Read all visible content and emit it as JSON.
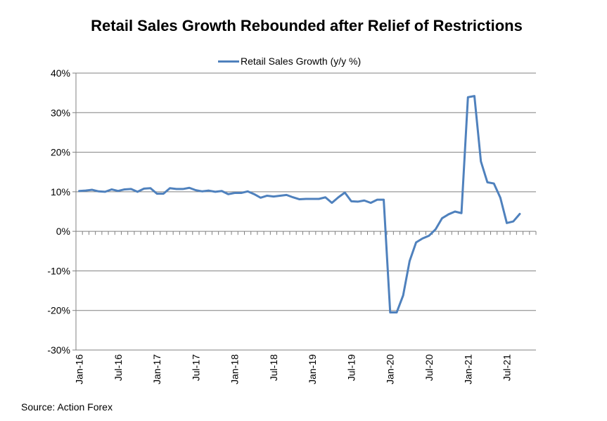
{
  "chart_data": {
    "type": "line",
    "title": "Retail Sales Growth Rebounded after Relief of Restrictions",
    "xlabel": "",
    "ylabel": "",
    "ylim": [
      -30,
      40
    ],
    "y_ticks": [
      "40%",
      "30%",
      "20%",
      "10%",
      "0%",
      "-10%",
      "-20%",
      "-30%"
    ],
    "y_tick_values": [
      40,
      30,
      20,
      10,
      0,
      -10,
      -20,
      -30
    ],
    "x_tick_labels": [
      "Jan-16",
      "Jul-16",
      "Jan-17",
      "Jul-17",
      "Jan-18",
      "Jul-18",
      "Jan-19",
      "Jul-19",
      "Jan-20",
      "Jul-20",
      "Jan-21",
      "Jul-21"
    ],
    "grid": "horizontal",
    "legend_position": "top",
    "colors": {
      "line": "#4f81bd",
      "grid": "#808080",
      "axis": "#808080"
    },
    "series": [
      {
        "name": "Retail Sales Growth (y/y %)",
        "x": [
          "Jan-16",
          "Feb-16",
          "Mar-16",
          "Apr-16",
          "May-16",
          "Jun-16",
          "Jul-16",
          "Aug-16",
          "Sep-16",
          "Oct-16",
          "Nov-16",
          "Dec-16",
          "Jan-17",
          "Feb-17",
          "Mar-17",
          "Apr-17",
          "May-17",
          "Jun-17",
          "Jul-17",
          "Aug-17",
          "Sep-17",
          "Oct-17",
          "Nov-17",
          "Dec-17",
          "Jan-18",
          "Feb-18",
          "Mar-18",
          "Apr-18",
          "May-18",
          "Jun-18",
          "Jul-18",
          "Aug-18",
          "Sep-18",
          "Oct-18",
          "Nov-18",
          "Dec-18",
          "Jan-19",
          "Feb-19",
          "Mar-19",
          "Apr-19",
          "May-19",
          "Jun-19",
          "Jul-19",
          "Aug-19",
          "Sep-19",
          "Oct-19",
          "Nov-19",
          "Dec-19",
          "Jan-20",
          "Feb-20",
          "Mar-20",
          "Apr-20",
          "May-20",
          "Jun-20",
          "Jul-20",
          "Aug-20",
          "Sep-20",
          "Oct-20",
          "Nov-20",
          "Dec-20",
          "Jan-21",
          "Feb-21",
          "Mar-21",
          "Apr-21",
          "May-21",
          "Jun-21",
          "Jul-21",
          "Aug-21",
          "Sep-21"
        ],
        "values": [
          10.2,
          10.3,
          10.5,
          10.1,
          10.0,
          10.6,
          10.2,
          10.6,
          10.7,
          10.0,
          10.8,
          10.9,
          9.5,
          9.5,
          10.9,
          10.7,
          10.7,
          11.0,
          10.4,
          10.1,
          10.3,
          10.0,
          10.2,
          9.4,
          9.7,
          9.7,
          10.1,
          9.4,
          8.5,
          9.0,
          8.8,
          9.0,
          9.2,
          8.6,
          8.1,
          8.2,
          8.2,
          8.2,
          8.6,
          7.2,
          8.6,
          9.8,
          7.6,
          7.5,
          7.8,
          7.2,
          8.0,
          8.0,
          -20.5,
          -20.5,
          -16.2,
          -7.5,
          -2.8,
          -1.8,
          -1.1,
          0.5,
          3.3,
          4.3,
          5.0,
          4.6,
          33.9,
          34.2,
          17.7,
          12.4,
          12.1,
          8.5,
          2.1,
          2.5,
          4.4
        ]
      }
    ]
  },
  "footer": {
    "source": "Source: Action Forex"
  }
}
